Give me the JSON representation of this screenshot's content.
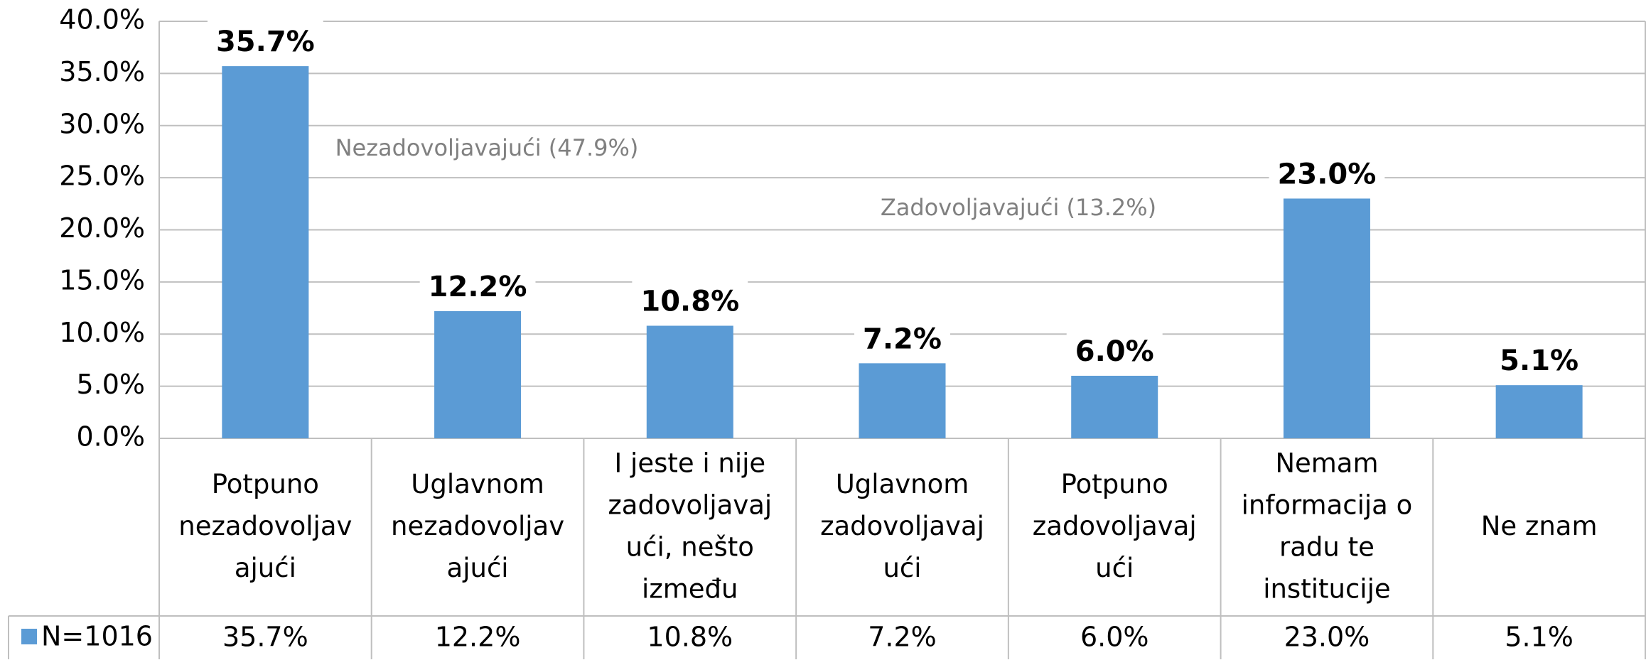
{
  "chart_data": {
    "type": "bar",
    "categories": [
      [
        "Potpuno",
        "nezadovoljav",
        "ajući"
      ],
      [
        "Uglavnom",
        "nezadovoljav",
        "ajući"
      ],
      [
        "I jeste i nije",
        "zadovoljavaj",
        "ući, nešto",
        "između"
      ],
      [
        "Uglavnom",
        "zadovoljavaj",
        "ući"
      ],
      [
        "Potpuno",
        "zadovoljavaj",
        "ući"
      ],
      [
        "Nemam",
        "informacija o",
        "radu te",
        "institucije"
      ],
      [
        "Ne znam"
      ]
    ],
    "series": [
      {
        "name": "N=1016",
        "color": "#5b9bd5",
        "values": [
          35.7,
          12.2,
          10.8,
          7.2,
          6.0,
          23.0,
          5.1
        ],
        "value_labels": [
          "35.7%",
          "12.2%",
          "10.8%",
          "7.2%",
          "6.0%",
          "23.0%",
          "5.1%"
        ]
      }
    ],
    "ylim": [
      0,
      40
    ],
    "yticks": [
      {
        "value": 0,
        "label": "0.0%"
      },
      {
        "value": 5,
        "label": "5.0%"
      },
      {
        "value": 10,
        "label": "10.0%"
      },
      {
        "value": 15,
        "label": "15.0%"
      },
      {
        "value": 20,
        "label": "20.0%"
      },
      {
        "value": 25,
        "label": "25.0%"
      },
      {
        "value": 30,
        "label": "30.0%"
      },
      {
        "value": 35,
        "label": "35.0%"
      },
      {
        "value": 40,
        "label": "40.0%"
      }
    ],
    "grid": true,
    "annotations": [
      "Nezadovoljavajući  (47.9%)",
      "Zadovoljavajući (13.2%)"
    ]
  }
}
